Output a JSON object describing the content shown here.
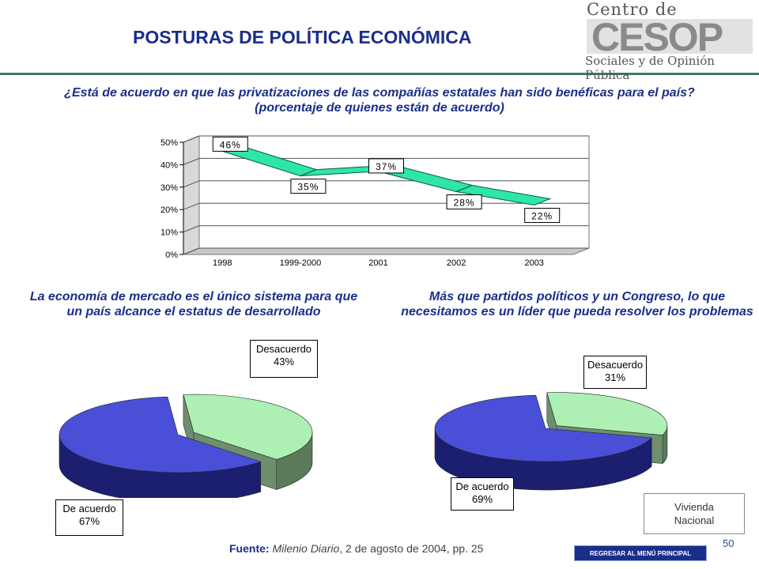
{
  "header": {
    "title": "POSTURAS DE POLÍTICA ECONÓMICA",
    "logo_top": "Centro de Estudios",
    "logo_mark": "CESOP",
    "logo_bottom": "Sociales y de Opinión Pública"
  },
  "questions": {
    "q1": "¿Está de acuerdo en que las privatizaciones de las compañías estatales han sido benéficas para el país? (porcentaje de quienes están de acuerdo)",
    "q2": "La economía de mercado es el único sistema para que un país alcance el estatus de desarrollado",
    "q3": "Más que partidos políticos y un Congreso, lo que necesitamos es un líder que pueda resolver los problemas"
  },
  "chart_data": [
    {
      "type": "line",
      "categories": [
        "1998",
        "1999-2000",
        "2001",
        "2002",
        "2003"
      ],
      "values": [
        46,
        35,
        37,
        28,
        22
      ],
      "data_labels": [
        "46%",
        "35%",
        "37%",
        "28%",
        "22%"
      ],
      "yticks": [
        "0%",
        "10%",
        "20%",
        "30%",
        "40%",
        "50%"
      ],
      "ylim": [
        0,
        50
      ],
      "grid": true,
      "color": "#2ee6a8"
    },
    {
      "type": "pie",
      "slices": [
        {
          "label": "Desacuerdo",
          "value": 43,
          "value_label": "43%",
          "color": "#aef0b4"
        },
        {
          "label": "De acuerdo",
          "value": 67,
          "value_label": "67%",
          "color": "#4a4fd8"
        }
      ]
    },
    {
      "type": "pie",
      "slices": [
        {
          "label": "Desacuerdo",
          "value": 31,
          "value_label": "31%",
          "color": "#aef0b4"
        },
        {
          "label": "De acuerdo",
          "value": 69,
          "value_label": "69%",
          "color": "#4a4fd8"
        }
      ]
    }
  ],
  "footer": {
    "source_label": "Fuente:",
    "source_name": "Milenio Diario",
    "source_rest": ", 2 de agosto de 2004, pp. 25",
    "note_line1": "Vivienda",
    "note_line2": "Nacional",
    "page_number": "50",
    "menu_button": "REGRESAR AL MENÚ PRINCIPAL"
  }
}
